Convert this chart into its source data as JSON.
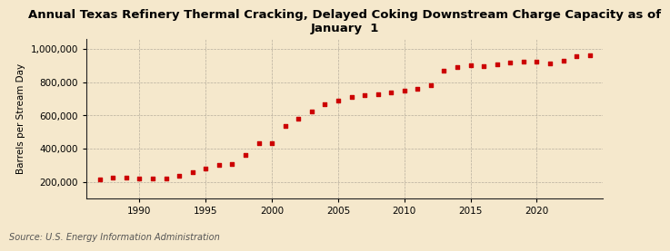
{
  "title": "Annual Texas Refinery Thermal Cracking, Delayed Coking Downstream Charge Capacity as of\nJanuary  1",
  "ylabel": "Barrels per Stream Day",
  "source": "Source: U.S. Energy Information Administration",
  "background_color": "#f5e8cc",
  "plot_bg_color": "#f5e8cc",
  "marker_color": "#cc0000",
  "years": [
    1987,
    1988,
    1989,
    1990,
    1991,
    1992,
    1993,
    1994,
    1995,
    1996,
    1997,
    1998,
    1999,
    2000,
    2001,
    2002,
    2003,
    2004,
    2005,
    2006,
    2007,
    2008,
    2009,
    2010,
    2011,
    2012,
    2013,
    2014,
    2015,
    2016,
    2017,
    2018,
    2019,
    2020,
    2021,
    2022,
    2023,
    2024
  ],
  "values": [
    215000,
    225000,
    225000,
    220000,
    220000,
    220000,
    235000,
    260000,
    280000,
    305000,
    310000,
    365000,
    435000,
    435000,
    535000,
    580000,
    625000,
    670000,
    690000,
    710000,
    720000,
    730000,
    740000,
    750000,
    760000,
    785000,
    870000,
    890000,
    900000,
    895000,
    910000,
    920000,
    925000,
    925000,
    915000,
    930000,
    955000,
    965000
  ],
  "ylim": [
    100000,
    1060000
  ],
  "yticks": [
    200000,
    400000,
    600000,
    800000,
    1000000
  ],
  "xticks": [
    1990,
    1995,
    2000,
    2005,
    2010,
    2015,
    2020
  ],
  "title_fontsize": 9.5,
  "label_fontsize": 7.5,
  "tick_fontsize": 7.5,
  "source_fontsize": 7
}
